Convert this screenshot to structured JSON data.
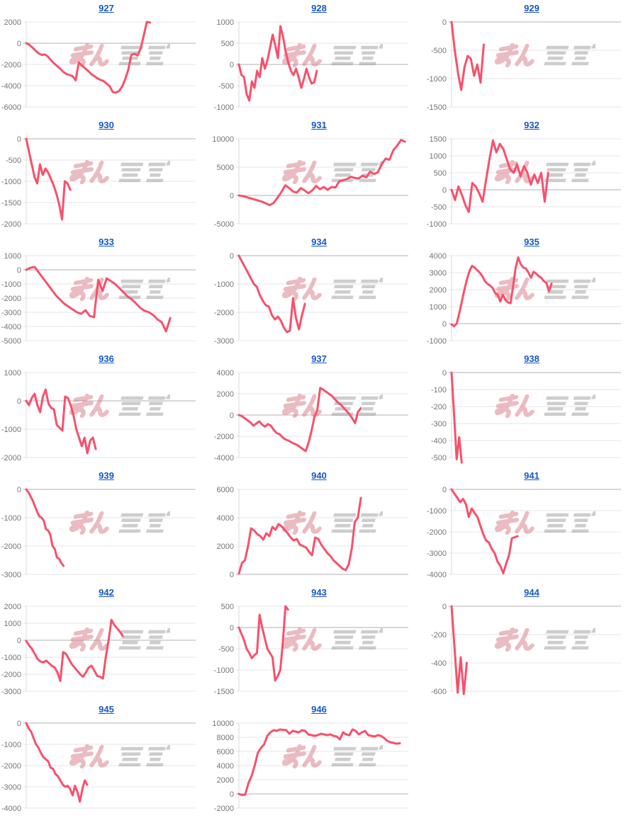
{
  "style": {
    "link_color": "#1659c4",
    "line_color": "#f8506b",
    "grid_color": "#e6e6e6",
    "zero_line_color": "#b0b0b0",
    "axis_line_color": "#d9d9d9",
    "tick_label_color": "#757575",
    "watermark_pink": "#dc8492",
    "watermark_gray": "#9c9c9c",
    "background": "#ffffff"
  },
  "watermark": {
    "name": "minrepo-logo",
    "text_pink": "みん",
    "text_gray": "レポ"
  },
  "chart_data": [
    {
      "id": "927",
      "type": "line",
      "yticks": [
        2000,
        0,
        -2000,
        -4000,
        -6000
      ],
      "end_frac": 0.73,
      "values": [
        0,
        -150,
        -400,
        -700,
        -950,
        -1100,
        -1050,
        -1250,
        -1600,
        -1900,
        -2150,
        -2400,
        -2700,
        -2900,
        -3000,
        -3100,
        -3500,
        -1800,
        -2100,
        -2350,
        -2600,
        -2900,
        -3100,
        -3300,
        -3450,
        -3550,
        -3800,
        -4050,
        -4600,
        -4650,
        -4500,
        -4100,
        -3400,
        -2500,
        -1100,
        -1000,
        -1150,
        -500,
        700,
        2000,
        1950
      ]
    },
    {
      "id": "928",
      "type": "line",
      "yticks": [
        1000,
        500,
        0,
        -500,
        -1000
      ],
      "end_frac": 0.46,
      "values": [
        0,
        -250,
        -300,
        -700,
        -850,
        -400,
        -550,
        -150,
        -300,
        150,
        -100,
        100,
        400,
        700,
        450,
        150,
        900,
        650,
        300,
        50,
        -150,
        -250,
        -100,
        -300,
        -550,
        -350,
        -100,
        -300,
        -450,
        -420,
        -150
      ]
    },
    {
      "id": "929",
      "type": "line",
      "yticks": [
        0,
        -500,
        -1000,
        -1500
      ],
      "end_frac": 0.19,
      "values": [
        0,
        -500,
        -900,
        -1200,
        -800,
        -600,
        -650,
        -950,
        -750,
        -1070,
        -400
      ]
    },
    {
      "id": "930",
      "type": "line",
      "yticks": [
        0,
        -500,
        -1000,
        -1500,
        -2000
      ],
      "end_frac": 0.26,
      "values": [
        0,
        -300,
        -600,
        -900,
        -1050,
        -600,
        -850,
        -700,
        -800,
        -950,
        -1100,
        -1300,
        -1550,
        -1900,
        -1000,
        -1050,
        -1200
      ]
    },
    {
      "id": "931",
      "type": "line",
      "yticks": [
        10000,
        5000,
        0,
        -5000
      ],
      "end_frac": 0.98,
      "values": [
        0,
        -100,
        -300,
        -500,
        -700,
        -900,
        -1100,
        -1400,
        -1700,
        -1300,
        -400,
        600,
        1800,
        1300,
        700,
        500,
        1300,
        900,
        400,
        900,
        1700,
        1100,
        1500,
        1000,
        1500,
        1400,
        2500,
        2700,
        2900,
        3300,
        3100,
        3000,
        3500,
        3200,
        4200,
        3800,
        4100,
        5500,
        6500,
        6300,
        8000,
        8800,
        9800,
        9500
      ]
    },
    {
      "id": "932",
      "type": "line",
      "yticks": [
        1500,
        1000,
        500,
        0,
        -500,
        -1000
      ],
      "end_frac": 0.57,
      "values": [
        0,
        -300,
        100,
        -150,
        -450,
        -650,
        200,
        100,
        -100,
        -350,
        300,
        900,
        1450,
        1100,
        1350,
        1200,
        900,
        600,
        500,
        750,
        400,
        700,
        500,
        150,
        450,
        200,
        500,
        -350,
        500
      ]
    },
    {
      "id": "933",
      "type": "line",
      "yticks": [
        1000,
        0,
        -1000,
        -2000,
        -3000,
        -4000,
        -5000
      ],
      "end_frac": 0.85,
      "values": [
        0,
        150,
        200,
        -200,
        -600,
        -1000,
        -1400,
        -1800,
        -2100,
        -2400,
        -2600,
        -2800,
        -3000,
        -3100,
        -2850,
        -3250,
        -3350,
        -700,
        -1500,
        -600,
        -800,
        -1000,
        -1300,
        -1600,
        -1900,
        -2100,
        -2400,
        -2700,
        -2900,
        -3000,
        -3200,
        -3500,
        -3700,
        -4350,
        -3400
      ]
    },
    {
      "id": "934",
      "type": "line",
      "yticks": [
        0,
        -1000,
        -2000,
        -3000
      ],
      "end_frac": 0.39,
      "values": [
        0,
        -200,
        -400,
        -600,
        -800,
        -1000,
        -1100,
        -1400,
        -1600,
        -1750,
        -1800,
        -2100,
        -2250,
        -2150,
        -2300,
        -2550,
        -2700,
        -2650,
        -1500,
        -2200,
        -2600,
        -2100,
        -1700
      ]
    },
    {
      "id": "935",
      "type": "line",
      "yticks": [
        4000,
        3000,
        2000,
        1000,
        0,
        -1000
      ],
      "end_frac": 0.59,
      "values": [
        -50,
        -150,
        0,
        600,
        1300,
        2000,
        2600,
        3100,
        3400,
        3300,
        3150,
        3000,
        2800,
        2500,
        2350,
        2250,
        2100,
        1800,
        1700,
        1300,
        1700,
        1400,
        1250,
        1200,
        2200,
        3300,
        3900,
        3500,
        3300,
        3250,
        3000,
        2700,
        3050,
        2950,
        2800,
        2700,
        2500,
        2400,
        1900,
        2350
      ]
    },
    {
      "id": "936",
      "type": "line",
      "yticks": [
        1000,
        0,
        -1000,
        -2000
      ],
      "end_frac": 0.41,
      "values": [
        0,
        -150,
        100,
        250,
        -150,
        -400,
        150,
        400,
        -100,
        -250,
        -300,
        -850,
        -950,
        -1050,
        150,
        100,
        -150,
        -500,
        -1000,
        -1300,
        -1600,
        -1300,
        -1850,
        -1400,
        -1300,
        -1700
      ]
    },
    {
      "id": "937",
      "type": "line",
      "yticks": [
        4000,
        2000,
        0,
        -2000,
        -4000
      ],
      "end_frac": 0.72,
      "values": [
        0,
        -100,
        -300,
        -500,
        -700,
        -1000,
        -800,
        -600,
        -900,
        -1100,
        -850,
        -1000,
        -1400,
        -1700,
        -1800,
        -2100,
        -2300,
        -2400,
        -2550,
        -2700,
        -2800,
        -3000,
        -3200,
        -3400,
        -2600,
        -1500,
        -200,
        500,
        2550,
        2400,
        2200,
        2000,
        1800,
        1500,
        1200,
        1000,
        700,
        400,
        100,
        -300,
        -750,
        300,
        650
      ]
    },
    {
      "id": "938",
      "type": "line",
      "yticks": [
        0,
        -100,
        -200,
        -300,
        -400,
        -500
      ],
      "end_frac": 0.06,
      "values": [
        0,
        -250,
        -510,
        -380,
        -530
      ]
    },
    {
      "id": "939",
      "type": "line",
      "yticks": [
        0,
        -1000,
        -2000,
        -3000
      ],
      "end_frac": 0.22,
      "values": [
        0,
        -100,
        -250,
        -400,
        -600,
        -800,
        -950,
        -1000,
        -1100,
        -1400,
        -1450,
        -1600,
        -2000,
        -2100,
        -2400,
        -2450,
        -2600,
        -2700
      ]
    },
    {
      "id": "940",
      "type": "line",
      "yticks": [
        6000,
        4000,
        2000,
        0
      ],
      "end_frac": 0.72,
      "values": [
        50,
        800,
        1000,
        2000,
        3250,
        3100,
        2850,
        2700,
        2450,
        2900,
        2700,
        3350,
        3150,
        3550,
        3400,
        3150,
        2900,
        2600,
        2400,
        2500,
        2100,
        2000,
        1900,
        1600,
        1350,
        2600,
        2500,
        2100,
        1800,
        1500,
        1300,
        1000,
        800,
        600,
        400,
        300,
        700,
        1800,
        3700,
        4000,
        5400
      ]
    },
    {
      "id": "941",
      "type": "line",
      "yticks": [
        0,
        -1000,
        -2000,
        -3000,
        -4000
      ],
      "end_frac": 0.39,
      "values": [
        0,
        -200,
        -400,
        -600,
        -450,
        -700,
        -1300,
        -900,
        -1100,
        -1300,
        -1700,
        -2100,
        -2400,
        -2500,
        -2800,
        -3000,
        -3400,
        -3600,
        -3950,
        -3500,
        -3100,
        -2300,
        -2250,
        -2200
      ]
    },
    {
      "id": "942",
      "type": "line",
      "yticks": [
        2000,
        1000,
        0,
        -1000,
        -2000,
        -3000
      ],
      "end_frac": 0.57,
      "values": [
        -50,
        -300,
        -500,
        -800,
        -1100,
        -1250,
        -1300,
        -1200,
        -1350,
        -1500,
        -1600,
        -1900,
        -2400,
        -700,
        -800,
        -1100,
        -1400,
        -1600,
        -1800,
        -2000,
        -2150,
        -1900,
        -1600,
        -1500,
        -1800,
        -2100,
        -2150,
        -2250,
        -1000,
        0,
        1200,
        900,
        700,
        500,
        250
      ]
    },
    {
      "id": "943",
      "type": "line",
      "yticks": [
        500,
        0,
        -500,
        -1000,
        -1500
      ],
      "end_frac": 0.29,
      "values": [
        0,
        -150,
        -300,
        -500,
        -600,
        -720,
        -650,
        -600,
        300,
        0,
        -250,
        -500,
        -600,
        -700,
        -1250,
        -1150,
        -1000,
        -350,
        500,
        420
      ]
    },
    {
      "id": "944",
      "type": "line",
      "yticks": [
        0,
        -200,
        -400,
        -600
      ],
      "end_frac": 0.09,
      "values": [
        0,
        -300,
        -610,
        -360,
        -620,
        -400
      ]
    },
    {
      "id": "945",
      "type": "line",
      "yticks": [
        0,
        -1000,
        -2000,
        -3000,
        -4000
      ],
      "end_frac": 0.36,
      "values": [
        0,
        -250,
        -400,
        -700,
        -1000,
        -1150,
        -1400,
        -1600,
        -1700,
        -1800,
        -2100,
        -2150,
        -2400,
        -2500,
        -2700,
        -2900,
        -3000,
        -2950,
        -3100,
        -3400,
        -2950,
        -3250,
        -3700,
        -3100,
        -2700,
        -2900
      ]
    },
    {
      "id": "946",
      "type": "line",
      "yticks": [
        10000,
        8000,
        6000,
        4000,
        2000,
        0,
        -2000
      ],
      "end_frac": 0.95,
      "values": [
        0,
        -150,
        -100,
        1500,
        2500,
        4000,
        5800,
        6500,
        7000,
        8200,
        8700,
        9000,
        8900,
        9100,
        9050,
        9000,
        8500,
        8900,
        8800,
        8700,
        9000,
        8900,
        8400,
        8300,
        8200,
        8300,
        8500,
        8400,
        8300,
        8400,
        8200,
        8100,
        7700,
        8700,
        8400,
        8300,
        9100,
        8900,
        8400,
        8700,
        8900,
        8300,
        8200,
        8100,
        8300,
        8200,
        7900,
        7500,
        7300,
        7200,
        7100,
        7150
      ]
    }
  ]
}
